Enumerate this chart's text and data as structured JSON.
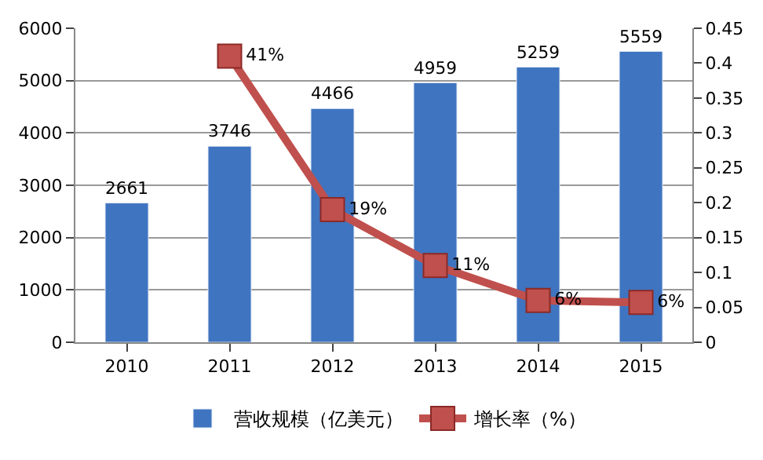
{
  "chart_data": {
    "type": "bar",
    "categories": [
      "2010",
      "2011",
      "2012",
      "2013",
      "2014",
      "2015"
    ],
    "series": [
      {
        "name": "营收规模（亿美元）",
        "color": "#3f74c0",
        "values": [
          2661,
          3746,
          4466,
          4959,
          5259,
          5559
        ],
        "data_labels": true
      },
      {
        "name": "增长率（%）",
        "type": "line",
        "axis": "y2",
        "color": "#c0504d",
        "marker": "square",
        "values": [
          null,
          0.41,
          0.19,
          0.11,
          0.06,
          0.057
        ],
        "value_labels": [
          null,
          "41%",
          "19%",
          "11%",
          "6%",
          "6%"
        ]
      }
    ],
    "ylim": [
      0,
      6000
    ],
    "yticks": [
      0,
      1000,
      2000,
      3000,
      4000,
      5000,
      6000
    ],
    "y2lim": [
      0,
      0.45
    ],
    "y2ticks": [
      0,
      0.05,
      0.1,
      0.15,
      0.2,
      0.25,
      0.3,
      0.35,
      0.4,
      0.45
    ],
    "grid": "y",
    "legend": "bottom"
  }
}
